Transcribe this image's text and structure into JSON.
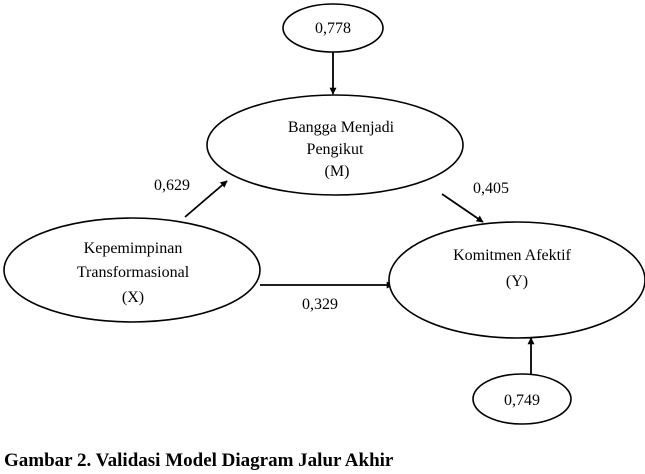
{
  "nodes": {
    "error_m": {
      "lines": [
        "0,778"
      ]
    },
    "mediator": {
      "lines": [
        "Bangga Menjadi",
        "Pengikut",
        "(M)"
      ]
    },
    "independent": {
      "lines": [
        "Kepemimpinan",
        "Transformasional",
        "(X)"
      ]
    },
    "dependent": {
      "lines": [
        "Komitmen Afektif",
        "(Y)"
      ]
    },
    "error_y": {
      "lines": [
        "0,749"
      ]
    }
  },
  "paths": {
    "x_to_m": "0,629",
    "m_to_y": "0,405",
    "x_to_y": "0,329"
  },
  "caption": "Gambar 2. Validasi Model Diagram Jalur Akhir",
  "colors": {
    "stroke": "#000000",
    "background": "#ffffff"
  }
}
